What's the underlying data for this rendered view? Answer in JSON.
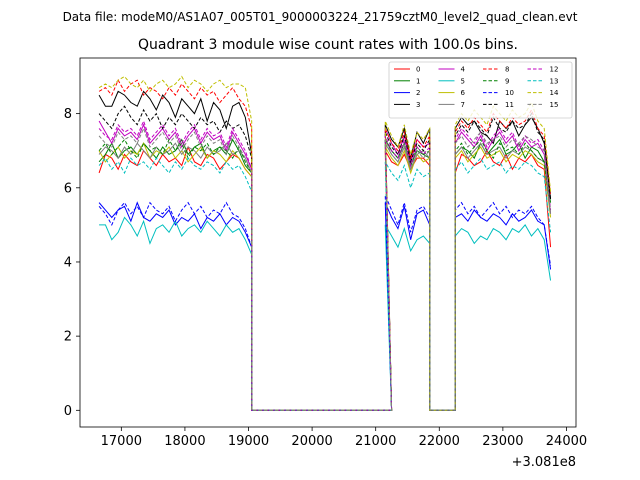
{
  "chart_data": {
    "type": "line",
    "suptitle": "Data file: modeM0/AS1A07_005T01_9000003224_21759cztM0_level2_quad_clean.evt",
    "title": "Quadrant 3 module wise count rates with 100.0s bins.",
    "xlabel": "",
    "ylabel": "",
    "x_offset_label": "+3.081e8",
    "xlim": [
      16350,
      24150
    ],
    "ylim": [
      -0.45,
      9.5
    ],
    "x_ticks": [
      17000,
      18000,
      19000,
      20000,
      21000,
      22000,
      23000,
      24000
    ],
    "x_tick_labels": [
      "17000",
      "18000",
      "19000",
      "20000",
      "21000",
      "22000",
      "23000",
      "24000"
    ],
    "y_ticks": [
      0,
      2,
      4,
      6,
      8
    ],
    "y_tick_labels": [
      "0",
      "2",
      "4",
      "6",
      "8"
    ],
    "legend_position": "top-right",
    "x_segments": [
      {
        "start": 16650,
        "end": 19050,
        "step": 100
      },
      {
        "start": 19050,
        "end": 21250,
        "step": 100
      },
      {
        "start": 21150,
        "end": 21850,
        "step": 100
      },
      {
        "start": 21850,
        "end": 22250,
        "step": 100
      },
      {
        "start": 22250,
        "end": 23750,
        "step": 100
      }
    ],
    "series": [
      {
        "name": "0",
        "color": "#ff0000",
        "dash": false,
        "seg1": [
          6.4,
          6.9,
          6.8,
          6.5,
          6.9,
          6.7,
          6.6,
          7.0,
          6.8,
          6.6,
          6.9,
          6.7,
          6.8,
          6.6,
          7.1,
          6.7,
          6.6,
          6.9,
          6.8,
          6.5,
          6.7,
          6.9,
          6.8,
          6.5,
          6.3
        ],
        "seg3": [
          7.0,
          6.7,
          6.6,
          6.9,
          6.5,
          6.8,
          6.8,
          6.6
        ],
        "seg5": [
          6.4,
          6.9,
          6.8,
          6.6,
          6.7,
          7.0,
          6.7,
          6.6,
          6.9,
          6.5,
          6.8,
          6.7,
          6.9,
          6.6,
          6.5,
          4.4
        ]
      },
      {
        "name": "1",
        "color": "#008000",
        "dash": false,
        "seg1": [
          6.7,
          6.9,
          7.2,
          6.8,
          7.0,
          7.1,
          6.9,
          7.2,
          7.0,
          6.8,
          7.1,
          6.9,
          7.0,
          7.3,
          6.9,
          7.1,
          7.2,
          6.8,
          7.0,
          7.1,
          6.9,
          7.3,
          7.0,
          6.6,
          6.4
        ],
        "seg3": [
          7.3,
          7.0,
          6.8,
          7.2,
          6.6,
          7.0,
          6.9,
          6.8
        ],
        "seg5": [
          6.9,
          7.1,
          7.0,
          6.8,
          7.2,
          6.9,
          7.1,
          7.3,
          6.9,
          7.0,
          7.2,
          6.8,
          7.1,
          7.0,
          6.7,
          5.6
        ]
      },
      {
        "name": "2",
        "color": "#0000ff",
        "dash": false,
        "seg1": [
          5.6,
          5.4,
          5.2,
          5.4,
          5.5,
          5.1,
          5.6,
          5.2,
          5.1,
          5.3,
          5.2,
          5.4,
          5.0,
          5.2,
          5.1,
          5.3,
          4.9,
          5.2,
          5.1,
          5.3,
          5.0,
          5.2,
          5.1,
          4.8,
          4.4
        ],
        "seg3": [
          5.6,
          5.2,
          4.9,
          5.5,
          4.6,
          5.3,
          5.4,
          5.0
        ],
        "seg5": [
          5.2,
          5.3,
          5.1,
          5.4,
          5.2,
          5.1,
          5.3,
          5.2,
          5.0,
          5.3,
          5.1,
          5.2,
          5.4,
          5.1,
          5.0,
          3.8
        ]
      },
      {
        "name": "3",
        "color": "#000000",
        "dash": false,
        "seg1": [
          8.5,
          8.2,
          8.2,
          8.6,
          8.5,
          8.3,
          8.2,
          8.6,
          8.4,
          8.1,
          8.5,
          8.3,
          7.9,
          8.4,
          8.2,
          8.0,
          8.4,
          7.8,
          8.3,
          8.1,
          7.6,
          8.2,
          8.3,
          7.9,
          6.9
        ],
        "seg3": [
          7.7,
          7.3,
          7.1,
          7.6,
          6.8,
          7.5,
          7.2,
          7.6
        ],
        "seg5": [
          7.6,
          7.9,
          7.7,
          7.8,
          7.5,
          7.4,
          7.2,
          7.8,
          7.6,
          7.8,
          7.4,
          7.7,
          7.9,
          7.6,
          7.2,
          5.7
        ]
      },
      {
        "name": "4",
        "color": "#c000c0",
        "dash": false,
        "seg1": [
          7.8,
          7.5,
          7.2,
          7.6,
          7.4,
          7.5,
          7.3,
          7.7,
          7.2,
          7.4,
          7.6,
          7.3,
          7.5,
          7.1,
          7.4,
          7.6,
          7.2,
          7.5,
          7.3,
          7.4,
          7.0,
          7.5,
          7.2,
          6.9,
          6.5
        ],
        "seg3": [
          7.6,
          7.2,
          6.9,
          7.4,
          6.7,
          7.3,
          7.1,
          7.2
        ],
        "seg5": [
          7.2,
          7.5,
          7.3,
          7.1,
          7.4,
          7.0,
          7.3,
          7.5,
          7.2,
          7.4,
          7.0,
          7.3,
          7.1,
          7.2,
          6.9,
          5.3
        ]
      },
      {
        "name": "5",
        "color": "#00bfbf",
        "dash": false,
        "seg1": [
          5.0,
          5.0,
          4.6,
          4.8,
          5.2,
          5.0,
          4.7,
          5.1,
          4.5,
          4.9,
          5.0,
          4.8,
          5.1,
          4.7,
          4.9,
          5.0,
          4.8,
          5.1,
          4.9,
          4.7,
          5.0,
          4.8,
          4.9,
          4.6,
          4.2
        ],
        "seg3": [
          5.0,
          4.7,
          4.4,
          4.9,
          4.3,
          4.6,
          4.7,
          4.5
        ],
        "seg5": [
          4.7,
          4.9,
          4.8,
          4.5,
          4.7,
          4.6,
          4.9,
          4.8,
          4.6,
          4.9,
          4.8,
          5.0,
          4.7,
          4.9,
          4.6,
          3.5
        ]
      },
      {
        "name": "6",
        "color": "#bfbf00",
        "dash": false,
        "seg1": [
          7.0,
          6.7,
          6.9,
          7.1,
          6.8,
          7.0,
          6.9,
          7.2,
          6.8,
          7.0,
          6.9,
          7.1,
          6.8,
          7.0,
          6.7,
          6.9,
          7.1,
          6.8,
          7.0,
          6.9,
          6.7,
          7.0,
          6.8,
          6.5,
          6.3
        ],
        "seg3": [
          7.1,
          6.8,
          6.6,
          7.0,
          6.4,
          6.9,
          6.7,
          6.8
        ],
        "seg5": [
          6.8,
          7.0,
          6.7,
          6.9,
          7.1,
          6.8,
          6.9,
          7.0,
          6.7,
          6.9,
          6.8,
          7.0,
          6.9,
          6.7,
          6.6,
          5.2
        ]
      },
      {
        "name": "7",
        "color": "#808080",
        "dash": false,
        "seg1": [
          6.9,
          7.1,
          7.0,
          6.8,
          7.1,
          6.9,
          7.2,
          7.0,
          6.8,
          7.1,
          6.9,
          7.0,
          7.2,
          6.9,
          7.1,
          7.0,
          6.8,
          7.1,
          6.9,
          7.0,
          7.2,
          6.9,
          7.0,
          6.8,
          6.4
        ],
        "seg3": [
          7.2,
          6.9,
          6.7,
          7.1,
          6.5,
          6.9,
          7.0,
          6.8
        ],
        "seg5": [
          6.9,
          7.1,
          6.8,
          7.0,
          7.2,
          6.9,
          7.0,
          7.1,
          6.8,
          7.0,
          6.9,
          7.1,
          7.0,
          6.8,
          6.7,
          5.3
        ]
      },
      {
        "name": "8",
        "color": "#ff0000",
        "dash": true,
        "seg1": [
          8.6,
          8.7,
          8.5,
          8.9,
          8.6,
          8.8,
          8.9,
          8.5,
          8.7,
          8.6,
          8.4,
          8.7,
          8.5,
          8.8,
          8.6,
          8.4,
          8.7,
          8.5,
          8.6,
          8.3,
          8.5,
          8.7,
          8.4,
          8.2,
          7.6
        ],
        "seg3": [
          7.6,
          7.2,
          7.0,
          7.5,
          6.8,
          7.3,
          7.1,
          7.4
        ],
        "seg5": [
          7.5,
          7.8,
          7.6,
          7.9,
          7.7,
          7.5,
          8.0,
          7.8,
          7.6,
          7.9,
          7.7,
          7.8,
          8.1,
          7.6,
          7.4,
          5.8
        ]
      },
      {
        "name": "9",
        "color": "#008000",
        "dash": true,
        "seg1": [
          7.0,
          7.2,
          6.9,
          7.1,
          7.3,
          7.0,
          6.8,
          7.2,
          7.0,
          7.1,
          6.9,
          7.3,
          7.0,
          7.2,
          6.8,
          7.1,
          7.0,
          7.2,
          6.9,
          7.1,
          7.0,
          6.8,
          7.1,
          6.7,
          6.4
        ],
        "seg3": [
          7.3,
          7.0,
          6.8,
          7.2,
          6.6,
          7.1,
          6.9,
          7.0
        ],
        "seg5": [
          7.0,
          7.2,
          6.9,
          7.1,
          7.3,
          7.0,
          6.8,
          7.2,
          7.0,
          7.1,
          6.9,
          7.2,
          7.0,
          6.8,
          6.7,
          5.4
        ]
      },
      {
        "name": "10",
        "color": "#0000ff",
        "dash": true,
        "seg1": [
          5.5,
          5.3,
          5.0,
          5.4,
          5.6,
          5.3,
          5.5,
          5.2,
          5.6,
          5.4,
          5.3,
          5.5,
          5.1,
          5.4,
          5.6,
          5.3,
          5.5,
          5.2,
          5.4,
          5.3,
          5.6,
          5.3,
          5.2,
          4.9,
          4.4
        ],
        "seg3": [
          5.8,
          5.4,
          5.0,
          5.6,
          4.8,
          5.4,
          5.5,
          5.2
        ],
        "seg5": [
          5.4,
          5.6,
          5.3,
          5.5,
          5.2,
          5.4,
          5.6,
          5.3,
          5.5,
          5.2,
          5.4,
          5.3,
          5.5,
          5.2,
          5.0,
          3.9
        ]
      },
      {
        "name": "11",
        "color": "#000000",
        "dash": true,
        "seg1": [
          8.0,
          7.8,
          7.6,
          8.0,
          8.2,
          7.9,
          7.7,
          8.1,
          7.8,
          8.0,
          7.6,
          7.9,
          7.7,
          8.0,
          7.8,
          7.6,
          7.9,
          7.7,
          7.8,
          7.5,
          7.8,
          7.6,
          7.7,
          7.4,
          6.8
        ],
        "seg3": [
          7.5,
          7.1,
          6.9,
          7.4,
          6.7,
          7.2,
          7.0,
          7.3
        ],
        "seg5": [
          7.4,
          7.7,
          7.5,
          7.8,
          7.6,
          7.4,
          7.9,
          7.6,
          7.5,
          7.8,
          7.6,
          7.7,
          8.0,
          7.5,
          7.3,
          5.7
        ]
      },
      {
        "name": "12",
        "color": "#c000c0",
        "dash": true,
        "seg1": [
          7.6,
          7.4,
          7.3,
          7.7,
          7.5,
          7.6,
          7.4,
          7.8,
          7.3,
          7.5,
          7.7,
          7.4,
          7.6,
          7.2,
          7.5,
          7.7,
          7.3,
          7.6,
          7.4,
          7.5,
          7.1,
          7.6,
          7.3,
          7.0,
          6.5
        ],
        "seg3": [
          7.4,
          7.0,
          6.8,
          7.3,
          6.6,
          7.1,
          6.9,
          7.1
        ],
        "seg5": [
          7.3,
          7.6,
          7.4,
          7.2,
          7.5,
          7.1,
          7.4,
          7.6,
          7.3,
          7.5,
          7.1,
          7.4,
          7.2,
          7.3,
          7.0,
          5.4
        ]
      },
      {
        "name": "13",
        "color": "#00bfbf",
        "dash": true,
        "seg1": [
          6.6,
          6.8,
          6.5,
          6.7,
          6.4,
          6.8,
          6.6,
          6.7,
          6.5,
          6.8,
          6.6,
          6.4,
          6.7,
          6.5,
          6.8,
          6.6,
          6.5,
          6.7,
          6.6,
          6.4,
          6.7,
          6.5,
          6.6,
          6.3,
          5.9
        ],
        "seg3": [
          6.7,
          6.4,
          6.2,
          6.6,
          6.0,
          6.5,
          6.3,
          6.4
        ],
        "seg5": [
          6.5,
          6.7,
          6.4,
          6.6,
          6.8,
          6.5,
          6.6,
          6.7,
          6.4,
          6.6,
          6.5,
          6.7,
          6.6,
          6.4,
          6.3,
          4.8
        ]
      },
      {
        "name": "14",
        "color": "#bfbf00",
        "dash": true,
        "seg1": [
          8.7,
          8.8,
          8.7,
          8.9,
          9.0,
          8.8,
          8.7,
          8.9,
          8.6,
          8.8,
          8.9,
          8.7,
          8.8,
          9.0,
          8.7,
          8.9,
          8.8,
          8.6,
          8.8,
          8.9,
          8.7,
          8.8,
          8.8,
          8.7,
          7.8
        ],
        "seg3": [
          7.8,
          7.4,
          7.1,
          7.7,
          6.9,
          7.5,
          7.3,
          7.6
        ],
        "seg5": [
          7.7,
          8.0,
          7.8,
          8.1,
          7.9,
          7.7,
          8.2,
          8.0,
          7.8,
          8.1,
          7.9,
          8.0,
          8.3,
          7.8,
          7.6,
          5.9
        ]
      },
      {
        "name": "15",
        "color": "#808080",
        "dash": true,
        "seg1": [
          7.4,
          7.2,
          7.1,
          7.5,
          7.3,
          7.4,
          7.2,
          7.6,
          7.1,
          7.3,
          7.5,
          7.2,
          7.4,
          7.0,
          7.3,
          7.5,
          7.1,
          7.4,
          7.2,
          7.3,
          6.9,
          7.4,
          7.1,
          6.8,
          6.4
        ],
        "seg3": [
          7.3,
          6.9,
          6.7,
          7.2,
          6.5,
          7.0,
          6.8,
          7.0
        ],
        "seg5": [
          7.2,
          7.4,
          7.1,
          7.3,
          7.5,
          7.2,
          7.3,
          7.4,
          7.1,
          7.3,
          7.2,
          7.4,
          7.3,
          7.1,
          7.0,
          5.3
        ]
      }
    ]
  }
}
